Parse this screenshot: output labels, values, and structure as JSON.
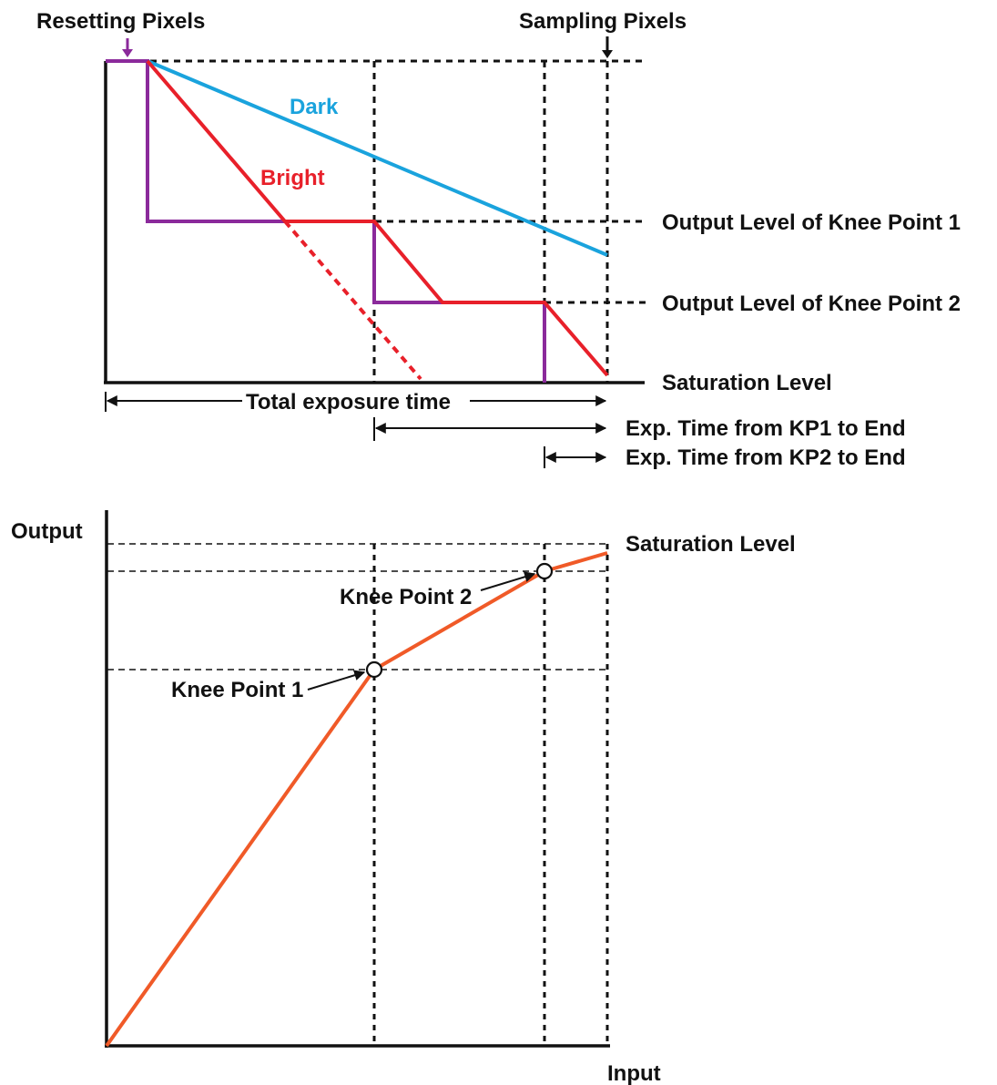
{
  "top_diagram": {
    "resetting_label": "Resetting Pixels",
    "sampling_label": "Sampling Pixels",
    "dark_label": "Dark",
    "bright_label": "Bright",
    "knee1_level_label": "Output Level of Knee Point 1",
    "knee2_level_label": "Output Level of Knee Point 2",
    "saturation_label": "Saturation Level",
    "total_exposure_label": "Total exposure time",
    "kp1_exposure_label": "Exp. Time from KP1 to End",
    "kp2_exposure_label": "Exp. Time from KP2 to End"
  },
  "bottom_chart": {
    "y_axis_label": "Output",
    "x_axis_label": "Input",
    "saturation_label": "Saturation Level",
    "knee2_label": "Knee Point 2",
    "knee1_label": "Knee Point 1"
  },
  "colors": {
    "dark_curve": "#1aa3dd",
    "bright_curve": "#e8202a",
    "reset_curve": "#8b2a9b",
    "response_curve": "#f05a28",
    "axes": "#111111"
  }
}
